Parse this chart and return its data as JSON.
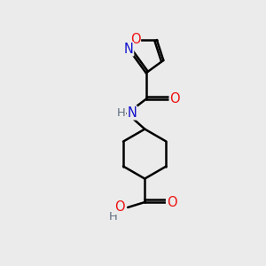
{
  "background_color": "#ebebeb",
  "atom_colors": {
    "C": "#000000",
    "N": "#1010cc",
    "O": "#ee1111",
    "H": "#607080"
  },
  "bond_lw": 1.8,
  "font_size": 10.5
}
